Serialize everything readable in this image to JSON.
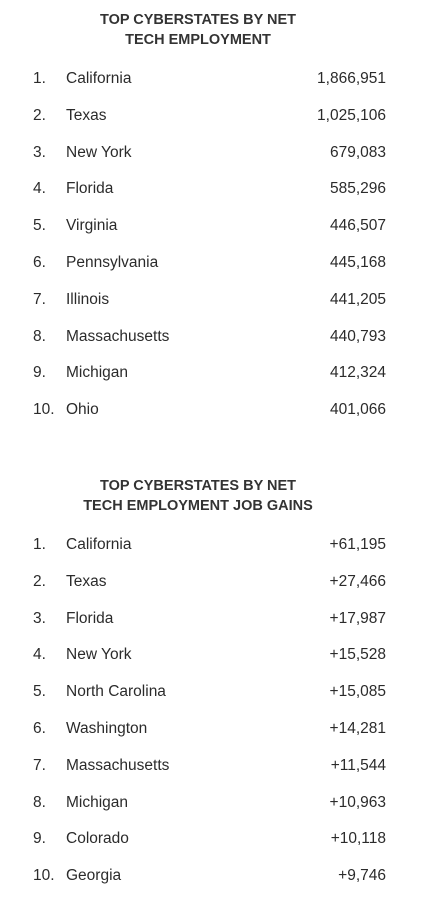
{
  "tables": [
    {
      "title": [
        "TOP CYBERSTATES BY NET",
        "TECH EMPLOYMENT"
      ],
      "rows": [
        [
          "1.",
          "California",
          "1,866,951"
        ],
        [
          "2.",
          "Texas",
          "1,025,106"
        ],
        [
          "3.",
          "New York",
          "679,083"
        ],
        [
          "4.",
          "Florida",
          "585,296"
        ],
        [
          "5.",
          "Virginia",
          "446,507"
        ],
        [
          "6.",
          "Pennsylvania",
          "445,168"
        ],
        [
          "7.",
          "Illinois",
          "441,205"
        ],
        [
          "8.",
          "Massachusetts",
          "440,793"
        ],
        [
          "9.",
          "Michigan",
          "412,324"
        ],
        [
          "10.",
          "Ohio",
          "401,066"
        ]
      ]
    },
    {
      "title": [
        "TOP CYBERSTATES BY NET",
        "TECH EMPLOYMENT JOB GAINS"
      ],
      "rows": [
        [
          "1.",
          "California",
          "+61,195"
        ],
        [
          "2.",
          "Texas",
          "+27,466"
        ],
        [
          "3.",
          "Florida",
          "+17,987"
        ],
        [
          "4.",
          "New York",
          "+15,528"
        ],
        [
          "5.",
          "North Carolina",
          "+15,085"
        ],
        [
          "6.",
          "Washington",
          "+14,281"
        ],
        [
          "7.",
          "Massachusetts",
          "+11,544"
        ],
        [
          "8.",
          "Michigan",
          "+10,963"
        ],
        [
          "9.",
          "Colorado",
          "+10,118"
        ],
        [
          "10.",
          "Georgia",
          "+9,746"
        ]
      ]
    }
  ]
}
